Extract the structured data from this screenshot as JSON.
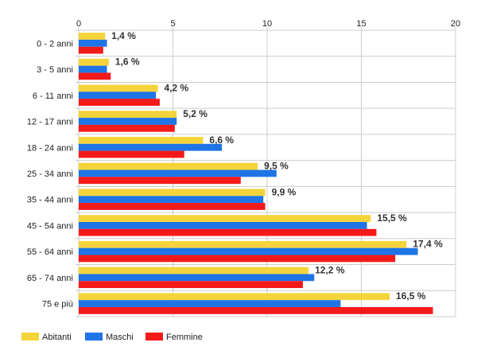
{
  "chart_data": {
    "type": "bar",
    "orientation": "horizontal",
    "categories": [
      "0 - 2 anni",
      "3 - 5 anni",
      "6 - 11 anni",
      "12 - 17 anni",
      "18 - 24 anni",
      "25 - 34 anni",
      "35 - 44 anni",
      "45 - 54 anni",
      "55 - 64 anni",
      "65 - 74 anni",
      "75 e più"
    ],
    "series": [
      {
        "name": "Abitanti",
        "color": "#f4d43a",
        "values": [
          1.4,
          1.6,
          4.2,
          5.2,
          6.6,
          9.5,
          9.9,
          15.5,
          17.4,
          12.2,
          16.5
        ]
      },
      {
        "name": "Maschi",
        "color": "#1f74e6",
        "values": [
          1.5,
          1.5,
          4.1,
          5.2,
          7.6,
          10.5,
          9.8,
          15.3,
          18.0,
          12.5,
          13.9
        ]
      },
      {
        "name": "Femmine",
        "color": "#f41a1a",
        "values": [
          1.3,
          1.7,
          4.3,
          5.1,
          5.6,
          8.6,
          9.9,
          15.8,
          16.8,
          11.9,
          18.8
        ]
      }
    ],
    "data_labels": [
      "1,4 %",
      "1,6 %",
      "4,2 %",
      "5,2 %",
      "6,6 %",
      "9,5 %",
      "9,9 %",
      "15,5 %",
      "17,4 %",
      "12,2 %",
      "16,5 %"
    ],
    "x_ticks": [
      "0",
      "5",
      "10",
      "15",
      "20"
    ],
    "xlim": [
      0,
      20
    ],
    "grid": true,
    "legend_position": "bottom-left",
    "title": "",
    "xlabel": "",
    "ylabel": ""
  }
}
